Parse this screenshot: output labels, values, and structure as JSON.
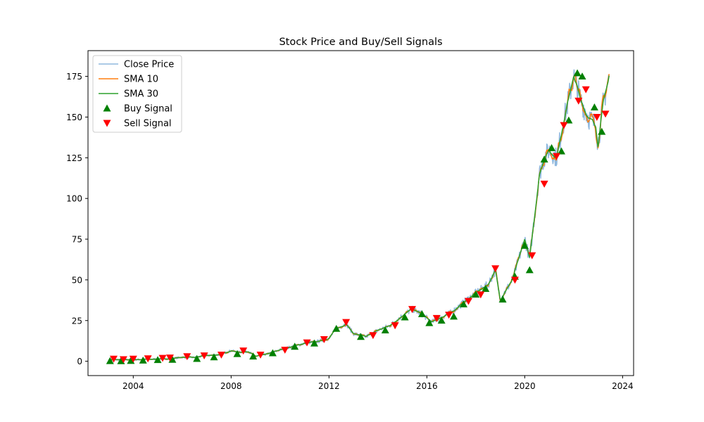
{
  "chart_data": {
    "type": "line",
    "title": "Stock Price and Buy/Sell Signals",
    "xlabel": "",
    "ylabel": "",
    "xlim": [
      2002.15,
      2024.45
    ],
    "ylim": [
      -8.8,
      190.8
    ],
    "x_ticks": [
      2004,
      2008,
      2012,
      2016,
      2020,
      2024
    ],
    "y_ticks": [
      0,
      25,
      50,
      75,
      100,
      125,
      150,
      175
    ],
    "grid": false,
    "legend": "upper-left",
    "colors": {
      "close": "#8fb8de",
      "sma10": "#ff7f0e",
      "sma30": "#2ca02c",
      "buy": "#008000",
      "sell": "#ff0000"
    },
    "series": [
      {
        "name": "Close Price",
        "style": "line",
        "color": "#8fb8de",
        "smooth": 0,
        "amp": 0.045
      },
      {
        "name": "SMA 10",
        "style": "line",
        "color": "#ff7f0e",
        "smooth": 2,
        "amp": 0.03
      },
      {
        "name": "SMA 30",
        "style": "line",
        "color": "#2ca02c",
        "smooth": 5,
        "amp": 0.015
      },
      {
        "name": "Buy Signal",
        "style": "marker",
        "marker": "triangle-up",
        "color": "#008000"
      },
      {
        "name": "Sell Signal",
        "style": "marker",
        "marker": "triangle-down",
        "color": "#ff0000"
      }
    ],
    "anchors": [
      [
        2003.0,
        0.9
      ],
      [
        2004.0,
        1.0
      ],
      [
        2004.8,
        1.2
      ],
      [
        2005.0,
        1.5
      ],
      [
        2005.5,
        1.5
      ],
      [
        2006.0,
        2.5
      ],
      [
        2006.5,
        2.3
      ],
      [
        2007.0,
        3.5
      ],
      [
        2007.5,
        4.0
      ],
      [
        2008.0,
        6.5
      ],
      [
        2008.3,
        5.5
      ],
      [
        2008.7,
        6.0
      ],
      [
        2009.0,
        3.0
      ],
      [
        2009.5,
        4.5
      ],
      [
        2010.0,
        7.0
      ],
      [
        2010.5,
        9.0
      ],
      [
        2011.0,
        11.0
      ],
      [
        2011.5,
        12.0
      ],
      [
        2012.0,
        14.0
      ],
      [
        2012.3,
        20.0
      ],
      [
        2012.7,
        23.0
      ],
      [
        2013.0,
        17.0
      ],
      [
        2013.5,
        15.0
      ],
      [
        2014.0,
        19.0
      ],
      [
        2014.5,
        22.0
      ],
      [
        2015.0,
        28.0
      ],
      [
        2015.4,
        32.0
      ],
      [
        2015.8,
        29.0
      ],
      [
        2016.2,
        24.0
      ],
      [
        2016.6,
        27.0
      ],
      [
        2017.0,
        30.0
      ],
      [
        2017.5,
        36.0
      ],
      [
        2018.0,
        42.0
      ],
      [
        2018.5,
        47.0
      ],
      [
        2018.8,
        56.0
      ],
      [
        2019.0,
        38.0
      ],
      [
        2019.5,
        50.0
      ],
      [
        2020.0,
        75.0
      ],
      [
        2020.2,
        63.0
      ],
      [
        2020.6,
        115.0
      ],
      [
        2020.8,
        125.0
      ],
      [
        2021.0,
        130.0
      ],
      [
        2021.3,
        125.0
      ],
      [
        2021.6,
        148.0
      ],
      [
        2022.0,
        175.0
      ],
      [
        2022.3,
        160.0
      ],
      [
        2022.6,
        150.0
      ],
      [
        2022.9,
        145.0
      ],
      [
        2023.0,
        133.0
      ],
      [
        2023.2,
        158.0
      ],
      [
        2023.45,
        175.0
      ]
    ],
    "buy_signals": [
      [
        2003.05,
        0.2
      ],
      [
        2003.5,
        0.1
      ],
      [
        2003.9,
        0.3
      ],
      [
        2004.4,
        0.5
      ],
      [
        2005.0,
        0.8
      ],
      [
        2005.6,
        1.0
      ],
      [
        2006.6,
        1.5
      ],
      [
        2007.3,
        2.5
      ],
      [
        2008.25,
        4.5
      ],
      [
        2008.9,
        3.0
      ],
      [
        2009.7,
        5.0
      ],
      [
        2010.6,
        9.0
      ],
      [
        2011.4,
        11.0
      ],
      [
        2012.3,
        20.0
      ],
      [
        2013.3,
        15.0
      ],
      [
        2014.3,
        19.0
      ],
      [
        2015.1,
        27.0
      ],
      [
        2015.8,
        29.0
      ],
      [
        2016.1,
        23.5
      ],
      [
        2016.6,
        25.0
      ],
      [
        2017.1,
        27.5
      ],
      [
        2017.5,
        35.0
      ],
      [
        2018.0,
        41.0
      ],
      [
        2018.4,
        44.5
      ],
      [
        2019.1,
        38.0
      ],
      [
        2019.6,
        52.0
      ],
      [
        2020.0,
        71.0
      ],
      [
        2020.2,
        56.0
      ],
      [
        2020.8,
        124.0
      ],
      [
        2021.1,
        131.0
      ],
      [
        2021.5,
        129.0
      ],
      [
        2021.8,
        148.0
      ],
      [
        2022.15,
        177.0
      ],
      [
        2022.35,
        175.0
      ],
      [
        2022.85,
        156.0
      ],
      [
        2023.15,
        141.0
      ]
    ],
    "sell_signals": [
      [
        2003.2,
        1.5
      ],
      [
        2003.6,
        1.2
      ],
      [
        2004.0,
        1.5
      ],
      [
        2004.6,
        1.7
      ],
      [
        2005.2,
        2.0
      ],
      [
        2005.5,
        2.2
      ],
      [
        2006.2,
        3.0
      ],
      [
        2006.9,
        3.5
      ],
      [
        2007.6,
        4.0
      ],
      [
        2008.5,
        6.5
      ],
      [
        2009.2,
        4.0
      ],
      [
        2010.2,
        7.0
      ],
      [
        2011.1,
        11.5
      ],
      [
        2011.8,
        13.5
      ],
      [
        2012.7,
        24.0
      ],
      [
        2013.8,
        16.0
      ],
      [
        2014.7,
        22.0
      ],
      [
        2015.4,
        32.0
      ],
      [
        2016.4,
        26.5
      ],
      [
        2016.9,
        28.5
      ],
      [
        2017.7,
        37.0
      ],
      [
        2018.2,
        41.0
      ],
      [
        2018.8,
        57.0
      ],
      [
        2019.6,
        50.0
      ],
      [
        2020.3,
        65.0
      ],
      [
        2020.8,
        109.0
      ],
      [
        2021.3,
        126.0
      ],
      [
        2021.6,
        145.0
      ],
      [
        2022.2,
        160.0
      ],
      [
        2022.5,
        167.0
      ],
      [
        2022.95,
        150.0
      ],
      [
        2023.3,
        152.0
      ]
    ]
  }
}
